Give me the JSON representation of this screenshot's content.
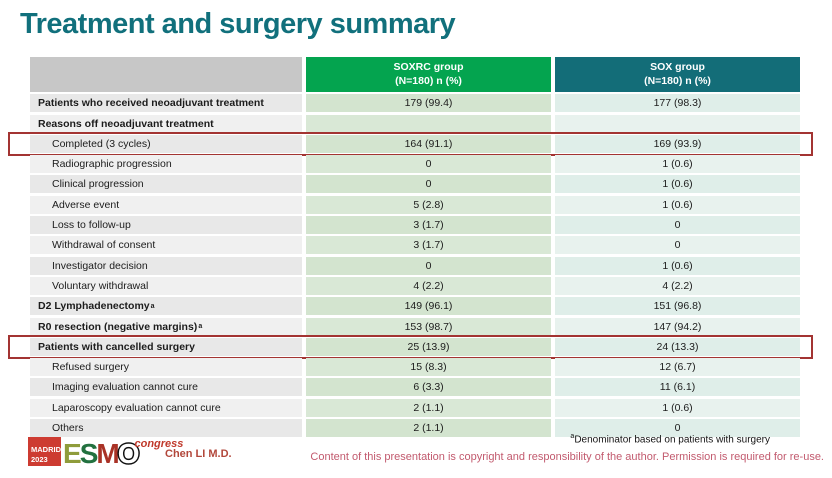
{
  "slide": {
    "title": "Treatment and surgery summary"
  },
  "table": {
    "columns": [
      {
        "name": "SOXRC group",
        "n_line": "(N=180)  n (%)"
      },
      {
        "name": "SOX group",
        "n_line": "(N=180)  n (%)"
      }
    ],
    "rows": [
      {
        "label": "Patients who received neoadjuvant treatment",
        "soxrc": "179 (99.4)",
        "sox": "177 (98.3)",
        "style": "header"
      },
      {
        "label": "Reasons off neoadjuvant treatment",
        "soxrc": "",
        "sox": "",
        "style": "header"
      },
      {
        "label": "Completed (3 cycles)",
        "soxrc": "164 (91.1)",
        "sox": "169 (93.9)",
        "style": "sub",
        "highlight": true
      },
      {
        "label": "Radiographic progression",
        "soxrc": "0",
        "sox": "1 (0.6)",
        "style": "sub"
      },
      {
        "label": "Clinical progression",
        "soxrc": "0",
        "sox": "1 (0.6)",
        "style": "sub"
      },
      {
        "label": "Adverse event",
        "soxrc": "5 (2.8)",
        "sox": "1 (0.6)",
        "style": "sub"
      },
      {
        "label": "Loss to follow-up",
        "soxrc": "3 (1.7)",
        "sox": "0",
        "style": "sub"
      },
      {
        "label": "Withdrawal of consent",
        "soxrc": "3 (1.7)",
        "sox": "0",
        "style": "sub"
      },
      {
        "label": "Investigator decision",
        "soxrc": "0",
        "sox": "1 (0.6)",
        "style": "sub"
      },
      {
        "label": "Voluntary withdrawal",
        "soxrc": "4 (2.2)",
        "sox": "4 (2.2)",
        "style": "sub"
      },
      {
        "label": "D2 Lymphadenectomy",
        "label_sup": "a",
        "soxrc": "149 (96.1)",
        "sox": "151 (96.8)",
        "style": "header"
      },
      {
        "label": "R0 resection (negative margins)",
        "label_sup": "a",
        "soxrc": "153 (98.7)",
        "sox": "147 (94.2)",
        "style": "header"
      },
      {
        "label": "Patients with cancelled surgery",
        "soxrc": "25 (13.9)",
        "sox": "24 (13.3)",
        "style": "header",
        "highlight": true
      },
      {
        "label": "Refused surgery",
        "soxrc": "15 (8.3)",
        "sox": "12 (6.7)",
        "style": "sub"
      },
      {
        "label": "Imaging evaluation cannot cure",
        "soxrc": "6 (3.3)",
        "sox": "11 (6.1)",
        "style": "sub"
      },
      {
        "label": "Laparoscopy evaluation cannot cure",
        "soxrc": "2 (1.1)",
        "sox": "1 (0.6)",
        "style": "sub"
      },
      {
        "label": "Others",
        "soxrc": "2 (1.1)",
        "sox": "0",
        "style": "sub"
      }
    ]
  },
  "footer": {
    "logo": {
      "city": "MADRID",
      "year": "2023",
      "org_letters": [
        "E",
        "S",
        "M",
        "O"
      ],
      "congress_label": "congress"
    },
    "presenter": "Chen LI M.D.",
    "footnote_marker": "a",
    "footnote_text": "Denominator based on patients with surgery",
    "copyright": "Content of this presentation is copyright and responsibility of the author.  Permission is required for re-use."
  },
  "colors": {
    "title": "#11707c",
    "soxrc_header": "#04a44f",
    "sox_header": "#136d78",
    "soxrc_cell": "#d3e4cf",
    "sox_cell": "#dfeee9",
    "label_cell": "#e8e8e8",
    "highlight_border": "#a33432",
    "presenter_text": "#b2473b",
    "copyright_text": "#c25a6e",
    "logo_red": "#cd3b31"
  }
}
